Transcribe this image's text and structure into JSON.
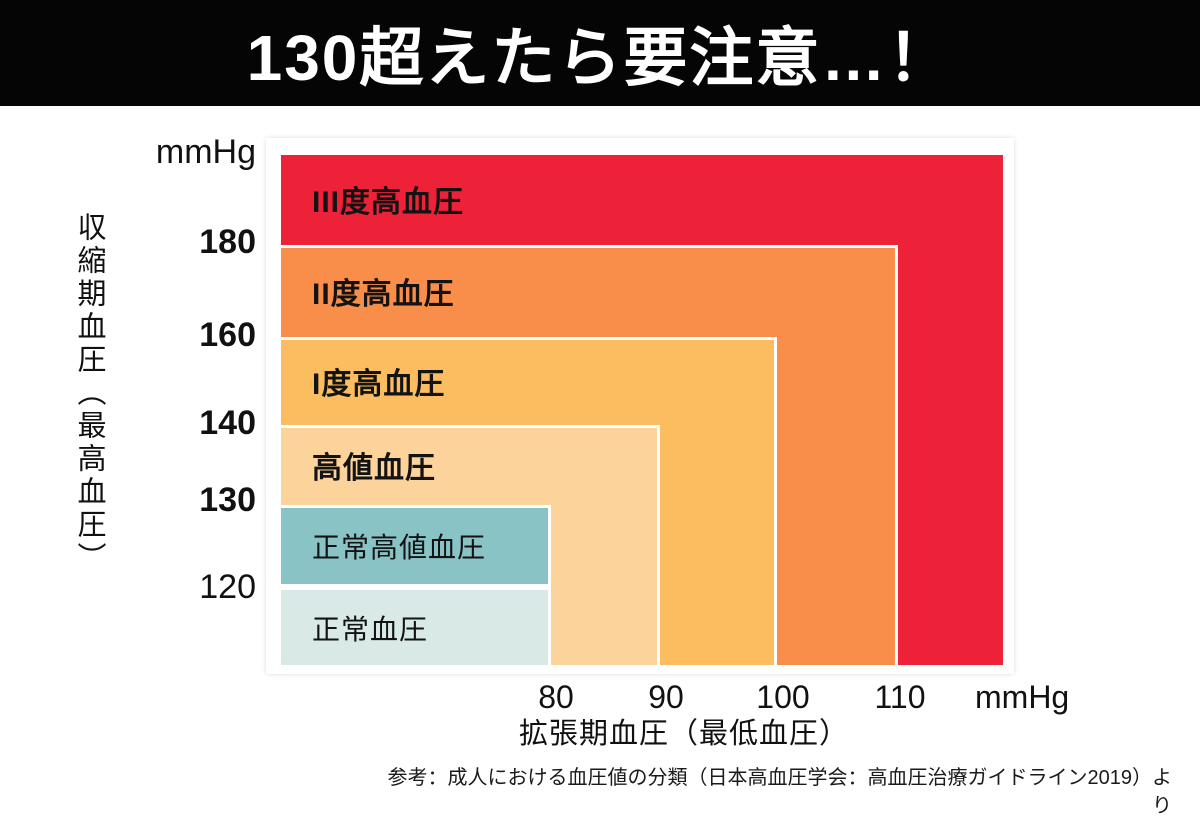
{
  "header": {
    "title": "130超えたら要注意…！"
  },
  "footer": {
    "source_note": "参考：成人における血圧値の分類（日本高血圧学会：高血圧治療ガイドライン2019）より"
  },
  "chart_data": {
    "type": "heatmap",
    "title": "130超えたら要注意…！",
    "xlabel": "拡張期血圧（最低血圧）",
    "ylabel": "収縮期血圧（最高血圧）",
    "x_unit": "mmHg",
    "y_unit": "mmHg",
    "x_ticks": [
      "80",
      "90",
      "100",
      "110"
    ],
    "y_ticks": [
      "180",
      "160",
      "140",
      "130",
      "120"
    ],
    "grid": false,
    "legend": false,
    "categories": [
      {
        "label": "III度高血圧",
        "systolic_mmHg": "≥180",
        "diastolic_mmHg": "≥110",
        "color": "#ED2137"
      },
      {
        "label": "II度高血圧",
        "systolic_mmHg": "160-179",
        "diastolic_mmHg": "100-109",
        "color": "#F98E4B"
      },
      {
        "label": "I度高血圧",
        "systolic_mmHg": "140-159",
        "diastolic_mmHg": "90-99",
        "color": "#FBBD5F"
      },
      {
        "label": "高値血圧",
        "systolic_mmHg": "130-139",
        "diastolic_mmHg": "80-89",
        "color": "#FCD39B"
      },
      {
        "label": "正常高値血圧",
        "systolic_mmHg": "120-129",
        "diastolic_mmHg": "<80",
        "color": "#8AC3C5"
      },
      {
        "label": "正常血圧",
        "systolic_mmHg": "<120",
        "diastolic_mmHg": "<80",
        "color": "#D9E9E6"
      }
    ]
  }
}
